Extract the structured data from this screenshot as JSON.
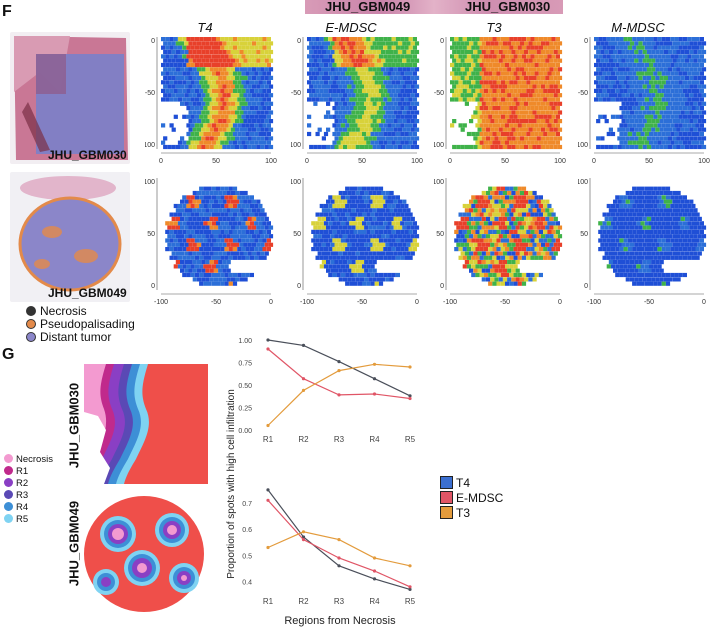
{
  "header_strip": {
    "left_label": "JHU_GBM049",
    "right_label": "JHU_GBM030"
  },
  "panel_f": {
    "letter": "F",
    "columns": [
      "T4",
      "E-MDSC",
      "T3",
      "M-MDSC"
    ],
    "rows": [
      {
        "sample": "JHU_GBM030",
        "x_ticks": [
          "0",
          "50",
          "100"
        ],
        "y_ticks": [
          "0",
          "-50",
          "-100"
        ]
      },
      {
        "sample": "JHU_GBM049",
        "x_ticks": [
          "-100",
          "-50",
          "0"
        ],
        "y_ticks": [
          "100",
          "50",
          "0"
        ]
      }
    ],
    "legend": [
      "Necrosis",
      "Pseudopalisading",
      "Distant tumor"
    ]
  },
  "panel_g": {
    "letter": "G",
    "samples": [
      "JHU_GBM030",
      "JHU_GBM049"
    ],
    "region_legend": [
      {
        "label": "Necrosis",
        "color": "#f39ad0"
      },
      {
        "label": "R1",
        "color": "#c02a8c"
      },
      {
        "label": "R2",
        "color": "#8a3fc4"
      },
      {
        "label": "R3",
        "color": "#5a49b5"
      },
      {
        "label": "R4",
        "color": "#3d8fd6"
      },
      {
        "label": "R5",
        "color": "#7fd3f2"
      }
    ],
    "line_legend": [
      {
        "label": "T4",
        "color": "#3b6fd1"
      },
      {
        "label": "E-MDSC",
        "color": "#e05566"
      },
      {
        "label": "T3",
        "color": "#e39b3c"
      }
    ]
  },
  "chart_data": [
    {
      "type": "line",
      "categories": [
        "R1",
        "R2",
        "R3",
        "R4",
        "R5"
      ],
      "ylim": [
        0,
        1.0
      ],
      "yticks": [
        "0.00",
        "0.25",
        "0.50",
        "0.75",
        "1.00"
      ],
      "series": [
        {
          "name": "T4",
          "color": "#4a4f5a",
          "values": [
            1.0,
            0.94,
            0.76,
            0.57,
            0.38
          ]
        },
        {
          "name": "E-MDSC",
          "color": "#e05566",
          "values": [
            0.9,
            0.57,
            0.39,
            0.4,
            0.35
          ]
        },
        {
          "name": "T3",
          "color": "#e39b3c",
          "values": [
            0.05,
            0.44,
            0.66,
            0.73,
            0.7
          ]
        }
      ]
    },
    {
      "type": "line",
      "categories": [
        "R1",
        "R2",
        "R3",
        "R4",
        "R5"
      ],
      "ylim": [
        0.36,
        0.78
      ],
      "yticks": [
        "0.4",
        "0.5",
        "0.6",
        "0.7"
      ],
      "ylabel": "Proportion of spots with high cell infiltration",
      "xlabel": "Regions from Necrosis",
      "series": [
        {
          "name": "T4",
          "color": "#4a4f5a",
          "values": [
            0.75,
            0.57,
            0.46,
            0.41,
            0.37
          ]
        },
        {
          "name": "E-MDSC",
          "color": "#e05566",
          "values": [
            0.71,
            0.56,
            0.49,
            0.44,
            0.38
          ]
        },
        {
          "name": "T3",
          "color": "#e39b3c",
          "values": [
            0.53,
            0.59,
            0.56,
            0.49,
            0.46
          ]
        }
      ]
    }
  ]
}
